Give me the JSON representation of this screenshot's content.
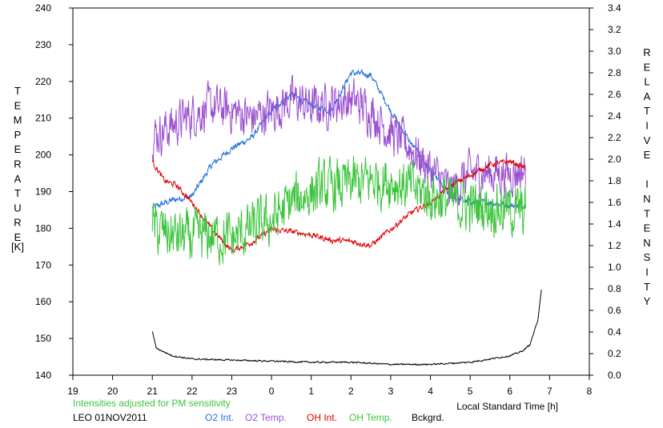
{
  "chart_data": {
    "type": "line",
    "left_axis": {
      "label": "TEMPERATURE",
      "unit": "[K]",
      "ylim": [
        140,
        240
      ],
      "ticks": [
        "140",
        "150",
        "160",
        "170",
        "180",
        "190",
        "200",
        "210",
        "220",
        "230",
        "240"
      ]
    },
    "right_axis": {
      "label": "RELATIVE INTENSITY",
      "ylim": [
        0.0,
        3.4
      ],
      "ticks": [
        "0.0",
        "0.2",
        "0.4",
        "0.6",
        "0.8",
        "1.0",
        "1.2",
        "1.4",
        "1.6",
        "1.8",
        "2.0",
        "2.2",
        "2.4",
        "2.6",
        "2.8",
        "3.0",
        "3.2",
        "3.4"
      ]
    },
    "x_axis": {
      "label": "Local Standard Time [h]",
      "ticks": [
        "19",
        "20",
        "21",
        "22",
        "23",
        "0",
        "1",
        "2",
        "3",
        "4",
        "5",
        "6",
        "7",
        "8"
      ],
      "xlim": [
        19,
        32
      ]
    },
    "annotations": {
      "note": "Intensities adjusted for PM sensitivity",
      "station": "LEO 01NOV2011"
    },
    "legend": [
      {
        "name": "O2 Int.",
        "color": "#1f6fdc"
      },
      {
        "name": "O2 Temp.",
        "color": "#9a4fd0"
      },
      {
        "name": "OH Int.",
        "color": "#e00000"
      },
      {
        "name": "OH Temp.",
        "color": "#3cc43c"
      },
      {
        "name": "Bckgrd.",
        "color": "#000000"
      }
    ],
    "series": [
      {
        "name": "O2 Int.",
        "axis": "right",
        "noise": 0.025,
        "points": [
          [
            21.0,
            1.55
          ],
          [
            21.5,
            1.62
          ],
          [
            22.0,
            1.66
          ],
          [
            22.5,
            1.95
          ],
          [
            23.0,
            2.1
          ],
          [
            23.5,
            2.2
          ],
          [
            24.0,
            2.45
          ],
          [
            24.5,
            2.6
          ],
          [
            25.0,
            2.5
          ],
          [
            25.5,
            2.45
          ],
          [
            26.0,
            2.8
          ],
          [
            26.5,
            2.78
          ],
          [
            27.0,
            2.45
          ],
          [
            27.5,
            2.15
          ],
          [
            28.0,
            1.9
          ],
          [
            28.5,
            1.65
          ],
          [
            29.0,
            1.6
          ],
          [
            29.5,
            1.6
          ],
          [
            30.0,
            1.57
          ],
          [
            30.4,
            1.58
          ]
        ]
      },
      {
        "name": "O2 Temp.",
        "axis": "left",
        "noise": 5,
        "points": [
          [
            21.0,
            205
          ],
          [
            21.5,
            208
          ],
          [
            22.0,
            211
          ],
          [
            22.5,
            213
          ],
          [
            23.0,
            212
          ],
          [
            23.5,
            210
          ],
          [
            24.0,
            212
          ],
          [
            24.5,
            215
          ],
          [
            25.0,
            213
          ],
          [
            25.5,
            214
          ],
          [
            26.0,
            215
          ],
          [
            26.5,
            212
          ],
          [
            27.0,
            206
          ],
          [
            27.5,
            202
          ],
          [
            28.0,
            196
          ],
          [
            28.5,
            190
          ],
          [
            29.0,
            195
          ],
          [
            29.5,
            195
          ],
          [
            30.0,
            195
          ],
          [
            30.4,
            196
          ]
        ]
      },
      {
        "name": "OH Int.",
        "axis": "right",
        "noise": 0.022,
        "points": [
          [
            21.0,
            1.98
          ],
          [
            21.3,
            1.8
          ],
          [
            21.6,
            1.76
          ],
          [
            22.0,
            1.6
          ],
          [
            22.5,
            1.35
          ],
          [
            23.0,
            1.15
          ],
          [
            23.5,
            1.23
          ],
          [
            24.0,
            1.35
          ],
          [
            24.5,
            1.33
          ],
          [
            25.0,
            1.3
          ],
          [
            25.5,
            1.25
          ],
          [
            26.0,
            1.24
          ],
          [
            26.5,
            1.2
          ],
          [
            27.0,
            1.35
          ],
          [
            27.5,
            1.5
          ],
          [
            28.0,
            1.6
          ],
          [
            28.5,
            1.75
          ],
          [
            29.0,
            1.85
          ],
          [
            29.5,
            1.95
          ],
          [
            30.0,
            1.98
          ],
          [
            30.4,
            1.92
          ]
        ]
      },
      {
        "name": "OH Temp.",
        "axis": "left",
        "noise": 6,
        "points": [
          [
            21.0,
            180
          ],
          [
            21.5,
            178
          ],
          [
            22.0,
            177
          ],
          [
            22.5,
            178
          ],
          [
            23.0,
            177
          ],
          [
            23.5,
            180
          ],
          [
            24.0,
            182
          ],
          [
            24.5,
            187
          ],
          [
            25.0,
            190
          ],
          [
            25.5,
            191
          ],
          [
            26.0,
            192
          ],
          [
            26.5,
            193
          ],
          [
            27.0,
            193
          ],
          [
            27.5,
            191
          ],
          [
            28.0,
            189
          ],
          [
            28.5,
            187
          ],
          [
            29.0,
            186
          ],
          [
            29.5,
            186
          ],
          [
            30.0,
            185
          ],
          [
            30.4,
            184
          ]
        ]
      },
      {
        "name": "Bckgrd.",
        "axis": "right",
        "noise": 0.006,
        "points": [
          [
            21.0,
            0.41
          ],
          [
            21.1,
            0.25
          ],
          [
            21.5,
            0.18
          ],
          [
            22.0,
            0.15
          ],
          [
            23.0,
            0.14
          ],
          [
            24.0,
            0.13
          ],
          [
            25.0,
            0.12
          ],
          [
            26.0,
            0.12
          ],
          [
            27.0,
            0.1
          ],
          [
            28.0,
            0.1
          ],
          [
            29.0,
            0.12
          ],
          [
            29.5,
            0.15
          ],
          [
            30.0,
            0.18
          ],
          [
            30.3,
            0.22
          ],
          [
            30.5,
            0.28
          ],
          [
            30.7,
            0.5
          ],
          [
            30.8,
            0.82
          ]
        ]
      }
    ]
  }
}
